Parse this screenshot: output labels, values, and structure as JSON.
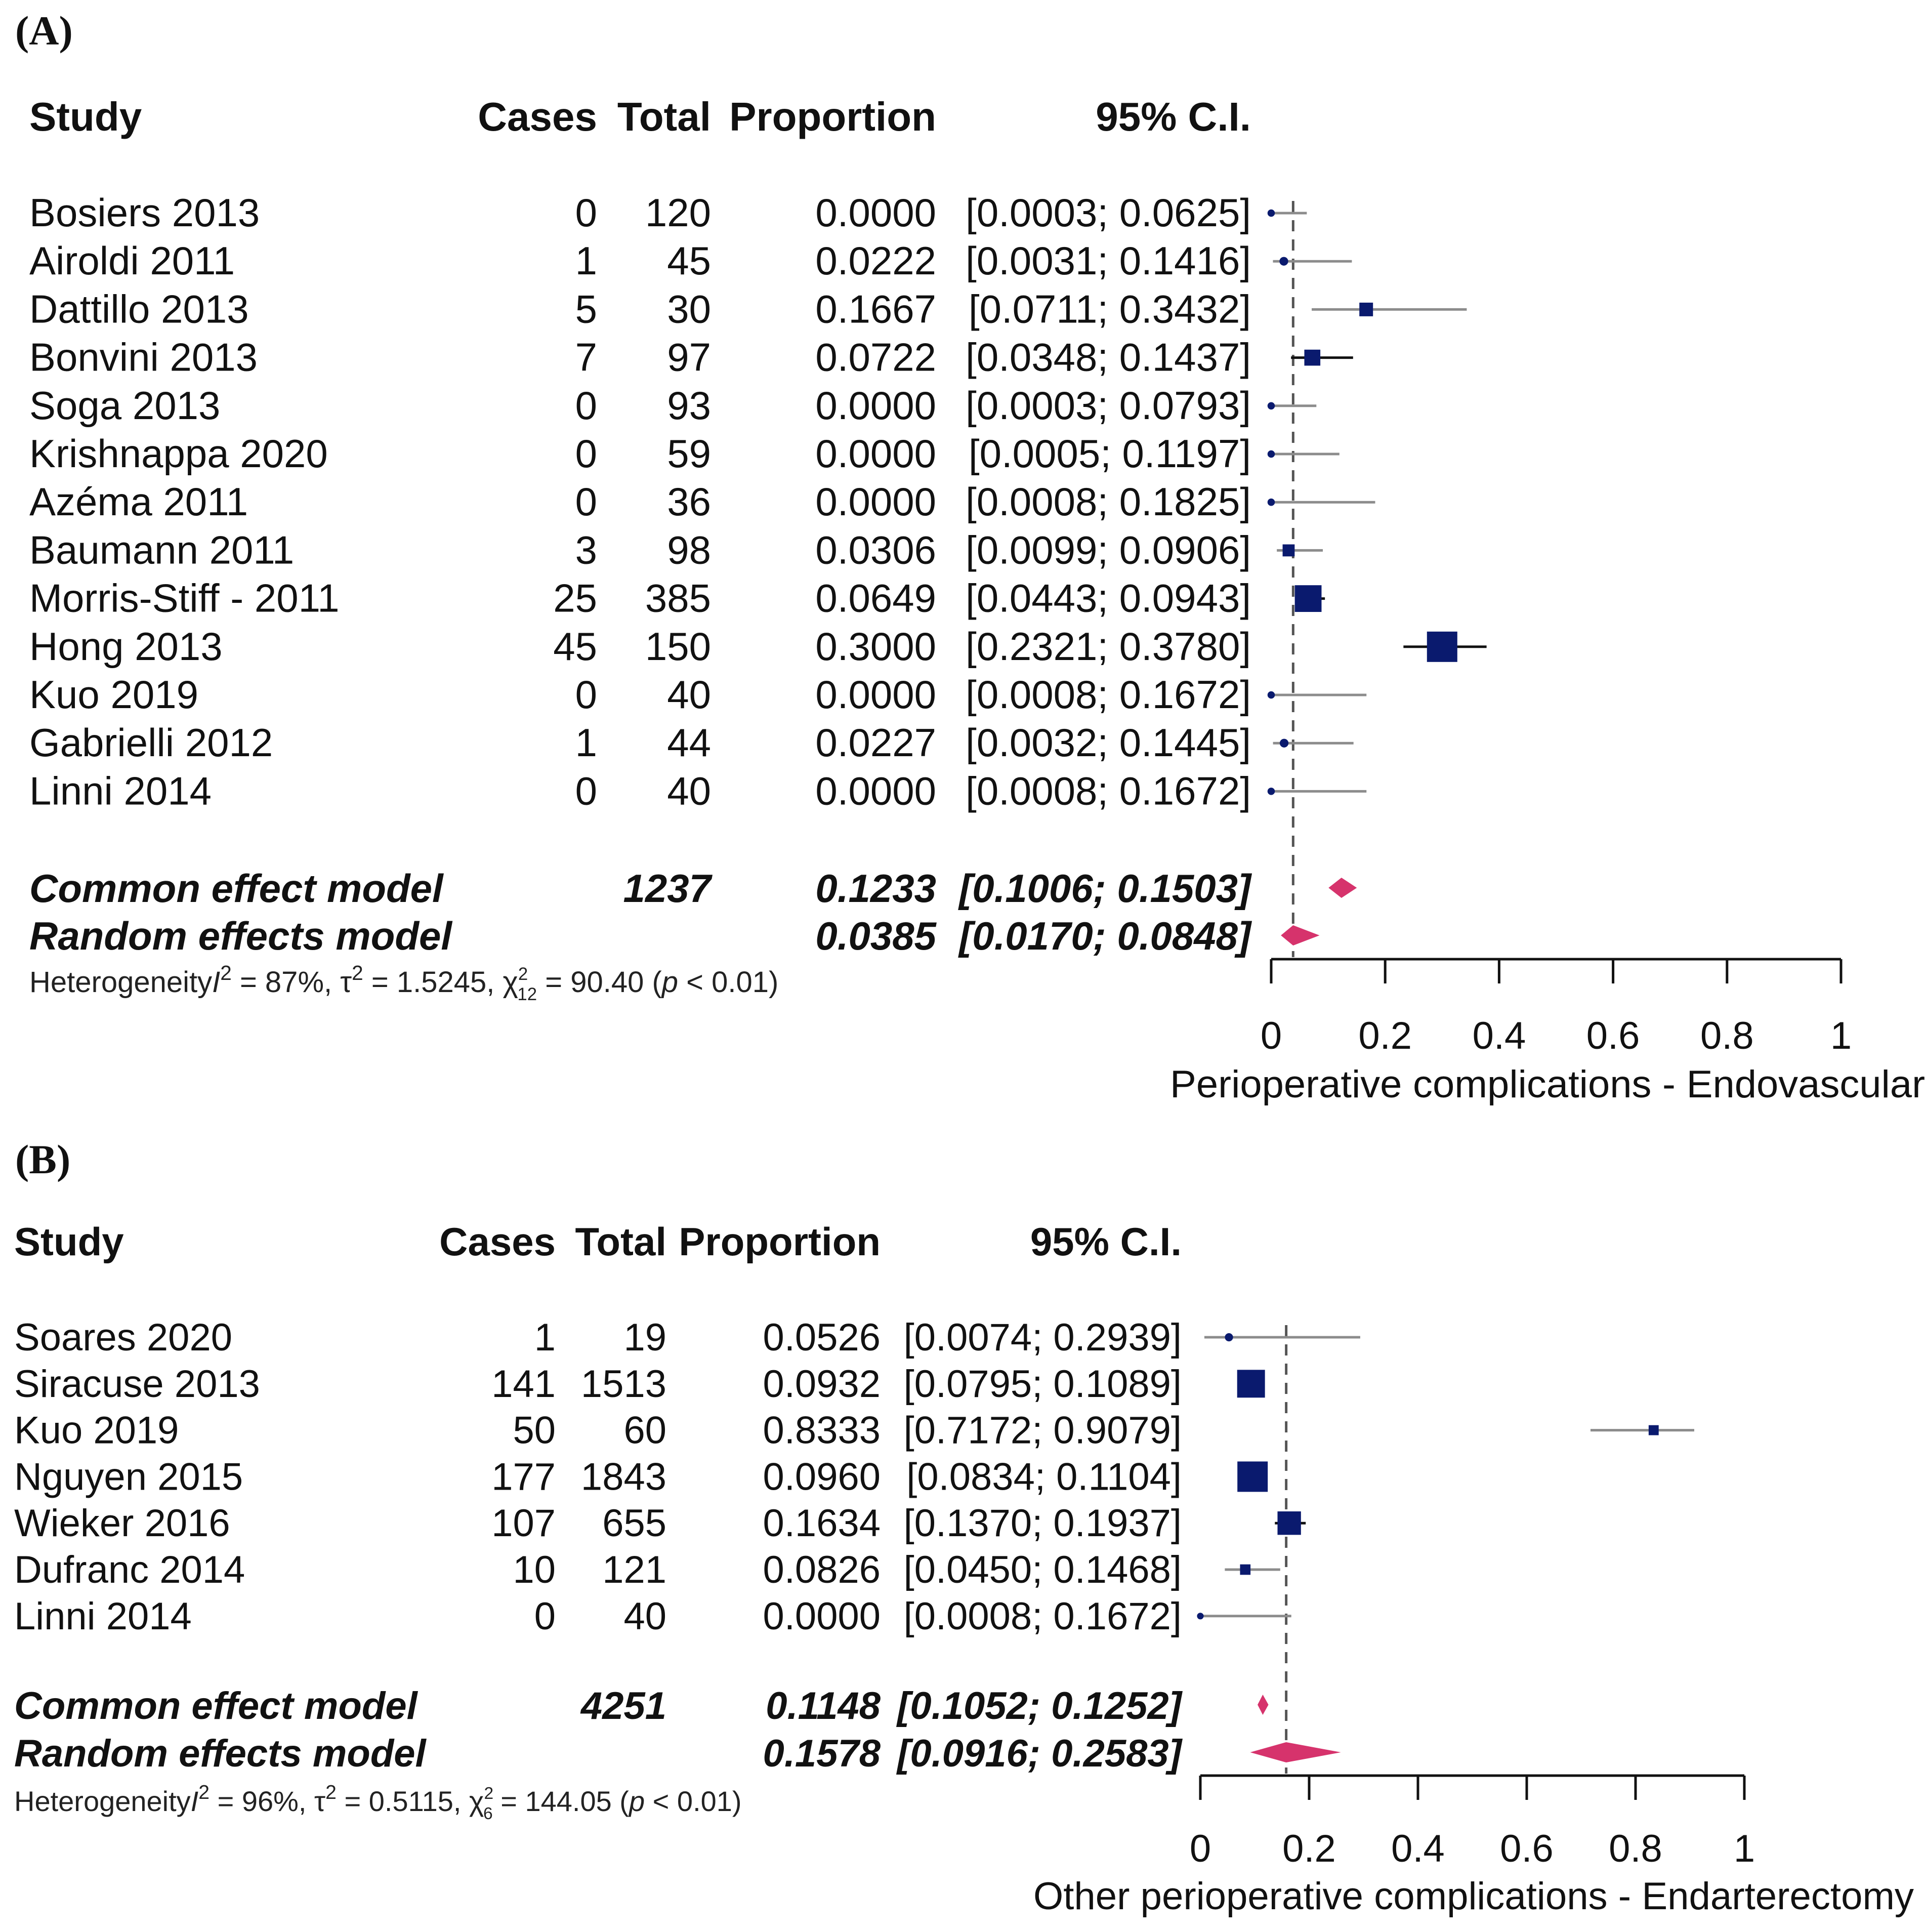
{
  "chart_data": [
    {
      "type": "forest",
      "panel_label": "(A)",
      "headers": {
        "study": "Study",
        "cases": "Cases",
        "total": "Total",
        "proportion": "Proportion",
        "ci": "95% C.I."
      },
      "studies": [
        {
          "name": "Bosiers 2013",
          "cases": 0,
          "total": 120,
          "proportion": "0.0000",
          "ci": "[0.0003; 0.0625]",
          "p": 0.0,
          "lo": 0.0003,
          "hi": 0.0625,
          "weight": 0.5
        },
        {
          "name": "Airoldi 2011",
          "cases": 1,
          "total": 45,
          "proportion": "0.0222",
          "ci": "[0.0031; 0.1416]",
          "p": 0.0222,
          "lo": 0.0031,
          "hi": 0.1416,
          "weight": 1
        },
        {
          "name": "Dattillo 2013",
          "cases": 5,
          "total": 30,
          "proportion": "0.1667",
          "ci": "[0.0711; 0.3432]",
          "p": 0.1667,
          "lo": 0.0711,
          "hi": 0.3432,
          "weight": 4.2
        },
        {
          "name": "Bonvini 2013",
          "cases": 7,
          "total": 97,
          "proportion": "0.0722",
          "ci": "[0.0348; 0.1437]",
          "p": 0.0722,
          "lo": 0.0348,
          "hi": 0.1437,
          "weight": 6.5
        },
        {
          "name": "Soga 2013",
          "cases": 0,
          "total": 93,
          "proportion": "0.0000",
          "ci": "[0.0003; 0.0793]",
          "p": 0.0,
          "lo": 0.0003,
          "hi": 0.0793,
          "weight": 0.5
        },
        {
          "name": "Krishnappa 2020",
          "cases": 0,
          "total": 59,
          "proportion": "0.0000",
          "ci": "[0.0005; 0.1197]",
          "p": 0.0,
          "lo": 0.0005,
          "hi": 0.1197,
          "weight": 0.5
        },
        {
          "name": "Azéma 2011",
          "cases": 0,
          "total": 36,
          "proportion": "0.0000",
          "ci": "[0.0008; 0.1825]",
          "p": 0.0,
          "lo": 0.0008,
          "hi": 0.1825,
          "weight": 0.5
        },
        {
          "name": "Baumann 2011",
          "cases": 3,
          "total": 98,
          "proportion": "0.0306",
          "ci": "[0.0099; 0.0906]",
          "p": 0.0306,
          "lo": 0.0099,
          "hi": 0.0906,
          "weight": 2.9
        },
        {
          "name": "Morris-Stiff - 2011",
          "cases": 25,
          "total": 385,
          "proportion": "0.0649",
          "ci": "[0.0443; 0.0943]",
          "p": 0.0649,
          "lo": 0.0443,
          "hi": 0.0943,
          "weight": 23.4
        },
        {
          "name": "Hong 2013",
          "cases": 45,
          "total": 150,
          "proportion": "0.3000",
          "ci": "[0.2321; 0.3780]",
          "p": 0.3,
          "lo": 0.2321,
          "hi": 0.378,
          "weight": 31.5
        },
        {
          "name": "Kuo 2019",
          "cases": 0,
          "total": 40,
          "proportion": "0.0000",
          "ci": "[0.0008; 0.1672]",
          "p": 0.0,
          "lo": 0.0008,
          "hi": 0.1672,
          "weight": 0.5
        },
        {
          "name": "Gabrielli 2012",
          "cases": 1,
          "total": 44,
          "proportion": "0.0227",
          "ci": "[0.0032; 0.1445]",
          "p": 0.0227,
          "lo": 0.0032,
          "hi": 0.1445,
          "weight": 1
        },
        {
          "name": "Linni 2014",
          "cases": 0,
          "total": 40,
          "proportion": "0.0000",
          "ci": "[0.0008; 0.1672]",
          "p": 0.0,
          "lo": 0.0008,
          "hi": 0.1672,
          "weight": 0.5
        }
      ],
      "common": {
        "label": "Common effect model",
        "total": "1237",
        "proportion": "0.1233",
        "ci": "[0.1006; 0.1503]",
        "p": 0.1233,
        "lo": 0.1006,
        "hi": 0.1503
      },
      "random": {
        "label": "Random effects model",
        "proportion": "0.0385",
        "ci": "[0.0170; 0.0848]",
        "p": 0.0385,
        "lo": 0.017,
        "hi": 0.0848
      },
      "heterogeneity": {
        "prefix": "Heterogeneity",
        "I2": "87%",
        "tau2": "1.5245",
        "df": "12",
        "chi2": "90.40",
        "p": "0.01"
      },
      "x_ticks": [
        0,
        0.2,
        0.4,
        0.6,
        0.8,
        1
      ],
      "x_tick_labels": [
        "0",
        "0.2",
        "0.4",
        "0.6",
        "0.8",
        "1"
      ],
      "xlim": [
        0,
        1
      ],
      "xlabel": "Perioperative complications - Endovascular"
    },
    {
      "type": "forest",
      "panel_label": "(B)",
      "headers": {
        "study": "Study",
        "cases": "Cases",
        "total": "Total",
        "proportion": "Proportion",
        "ci": "95% C.I."
      },
      "studies": [
        {
          "name": "Soares 2020",
          "cases": 1,
          "total": 19,
          "proportion": "0.0526",
          "ci": "[0.0074; 0.2939]",
          "p": 0.0526,
          "lo": 0.0074,
          "hi": 0.2939,
          "weight": 1
        },
        {
          "name": "Siracuse 2013",
          "cases": 141,
          "total": 1513,
          "proportion": "0.0932",
          "ci": "[0.0795; 0.1089]",
          "p": 0.0932,
          "lo": 0.0795,
          "hi": 0.1089,
          "weight": 33
        },
        {
          "name": "Kuo 2019",
          "cases": 50,
          "total": 60,
          "proportion": "0.8333",
          "ci": "[0.7172; 0.9079]",
          "p": 0.8333,
          "lo": 0.7172,
          "hi": 0.9079,
          "weight": 2.1
        },
        {
          "name": "Nguyen 2015",
          "cases": 177,
          "total": 1843,
          "proportion": "0.0960",
          "ci": "[0.0834; 0.1104]",
          "p": 0.096,
          "lo": 0.0834,
          "hi": 0.1104,
          "weight": 40.5
        },
        {
          "name": "Wieker 2016",
          "cases": 107,
          "total": 655,
          "proportion": "0.1634",
          "ci": "[0.1370; 0.1937]",
          "p": 0.1634,
          "lo": 0.137,
          "hi": 0.1937,
          "weight": 22
        },
        {
          "name": "Dufranc 2014",
          "cases": 10,
          "total": 121,
          "proportion": "0.0826",
          "ci": "[0.0450; 0.1468]",
          "p": 0.0826,
          "lo": 0.045,
          "hi": 0.1468,
          "weight": 2.4
        },
        {
          "name": "Linni 2014",
          "cases": 0,
          "total": 40,
          "proportion": "0.0000",
          "ci": "[0.0008; 0.1672]",
          "p": 0.0,
          "lo": 0.0008,
          "hi": 0.1672,
          "weight": 0.4
        }
      ],
      "common": {
        "label": "Common effect model",
        "total": "4251",
        "proportion": "0.1148",
        "ci": "[0.1052; 0.1252]",
        "p": 0.1148,
        "lo": 0.1052,
        "hi": 0.1252
      },
      "random": {
        "label": "Random effects model",
        "proportion": "0.1578",
        "ci": "[0.0916; 0.2583]",
        "p": 0.1578,
        "lo": 0.0916,
        "hi": 0.2583
      },
      "heterogeneity": {
        "prefix": "Heterogeneity",
        "I2": "96%",
        "tau2": "0.5115",
        "df": "6",
        "chi2": "144.05",
        "p": "0.01"
      },
      "x_ticks": [
        0,
        0.2,
        0.4,
        0.6,
        0.8,
        1
      ],
      "x_tick_labels": [
        "0",
        "0.2",
        "0.4",
        "0.6",
        "0.8",
        "1"
      ],
      "xlim": [
        0,
        1
      ],
      "xlabel": "Other perioperative complications - Endarterectomy"
    }
  ],
  "colors": {
    "square": "#0a1a6e",
    "diamond": "#d6336c",
    "ci_line_light": "#8c8c8c",
    "ci_line_dark": "#111111",
    "text": "#111111"
  }
}
